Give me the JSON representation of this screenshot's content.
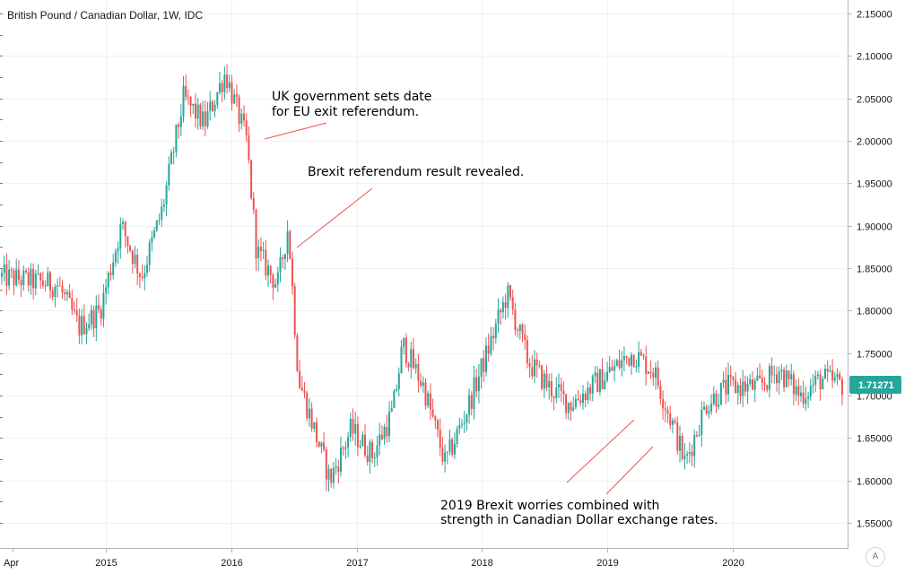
{
  "chart_title": "British Pound / Canadian Dollar, 1W, IDC",
  "scale_mode_label": "A",
  "colors": {
    "up": "#26a69a",
    "down": "#ef5350",
    "grid": "#eef1f5",
    "axis_border": "#b2b5be",
    "price_badge": "#26a69a"
  },
  "chart_data": {
    "type": "candlestick",
    "symbol": "GBP/CAD",
    "interval": "1W",
    "source": "IDC",
    "title": "British Pound / Canadian Dollar, 1W, IDC",
    "x_ticks": [
      "Apr",
      "2015",
      "2016",
      "2017",
      "2018",
      "2019",
      "2020"
    ],
    "y_ticks": [
      "2.15000",
      "2.10000",
      "2.05000",
      "2.00000",
      "1.95000",
      "1.90000",
      "1.85000",
      "1.80000",
      "1.75000",
      "1.70000",
      "1.65000",
      "1.60000",
      "1.55000"
    ],
    "ylim": [
      1.535,
      2.158
    ],
    "grid": true,
    "last_price": "1.71271",
    "approx_close_path": [
      {
        "date": "2014-04",
        "close": 1.84
      },
      {
        "date": "2014-08",
        "close": 1.83
      },
      {
        "date": "2014-10",
        "close": 1.78
      },
      {
        "date": "2014-12",
        "close": 1.8
      },
      {
        "date": "2015-02",
        "close": 1.9
      },
      {
        "date": "2015-04",
        "close": 1.84
      },
      {
        "date": "2015-06",
        "close": 1.92
      },
      {
        "date": "2015-08",
        "close": 2.05
      },
      {
        "date": "2015-10",
        "close": 2.02
      },
      {
        "date": "2015-12",
        "close": 2.08
      },
      {
        "date": "2016-02",
        "close": 2.0
      },
      {
        "date": "2016-03",
        "close": 1.87
      },
      {
        "date": "2016-05",
        "close": 1.83
      },
      {
        "date": "2016-06",
        "close": 1.9
      },
      {
        "date": "2016-07",
        "close": 1.72
      },
      {
        "date": "2016-10",
        "close": 1.6
      },
      {
        "date": "2016-12",
        "close": 1.66
      },
      {
        "date": "2017-02",
        "close": 1.63
      },
      {
        "date": "2017-04",
        "close": 1.68
      },
      {
        "date": "2017-05",
        "close": 1.76
      },
      {
        "date": "2017-07",
        "close": 1.71
      },
      {
        "date": "2017-09",
        "close": 1.62
      },
      {
        "date": "2017-11",
        "close": 1.68
      },
      {
        "date": "2018-01",
        "close": 1.75
      },
      {
        "date": "2018-03",
        "close": 1.82
      },
      {
        "date": "2018-05",
        "close": 1.74
      },
      {
        "date": "2018-07",
        "close": 1.71
      },
      {
        "date": "2018-09",
        "close": 1.69
      },
      {
        "date": "2018-12",
        "close": 1.72
      },
      {
        "date": "2019-03",
        "close": 1.75
      },
      {
        "date": "2019-05",
        "close": 1.73
      },
      {
        "date": "2019-07",
        "close": 1.66
      },
      {
        "date": "2019-08",
        "close": 1.62
      },
      {
        "date": "2019-10",
        "close": 1.69
      },
      {
        "date": "2019-12",
        "close": 1.71
      },
      {
        "date": "2020-03",
        "close": 1.71
      },
      {
        "date": "2020-05",
        "close": 1.73
      },
      {
        "date": "2020-07",
        "close": 1.7
      },
      {
        "date": "2020-09",
        "close": 1.72
      },
      {
        "date": "2020-11",
        "close": 1.713
      }
    ],
    "annotations": [
      {
        "lines": [
          "UK government sets date",
          "for EU exit referendum."
        ]
      },
      {
        "lines": [
          "Brexit referendum result revealed."
        ]
      },
      {
        "lines": [
          "2019 Brexit worries combined with",
          "strength in Canadian Dollar exchange rates."
        ]
      }
    ]
  }
}
